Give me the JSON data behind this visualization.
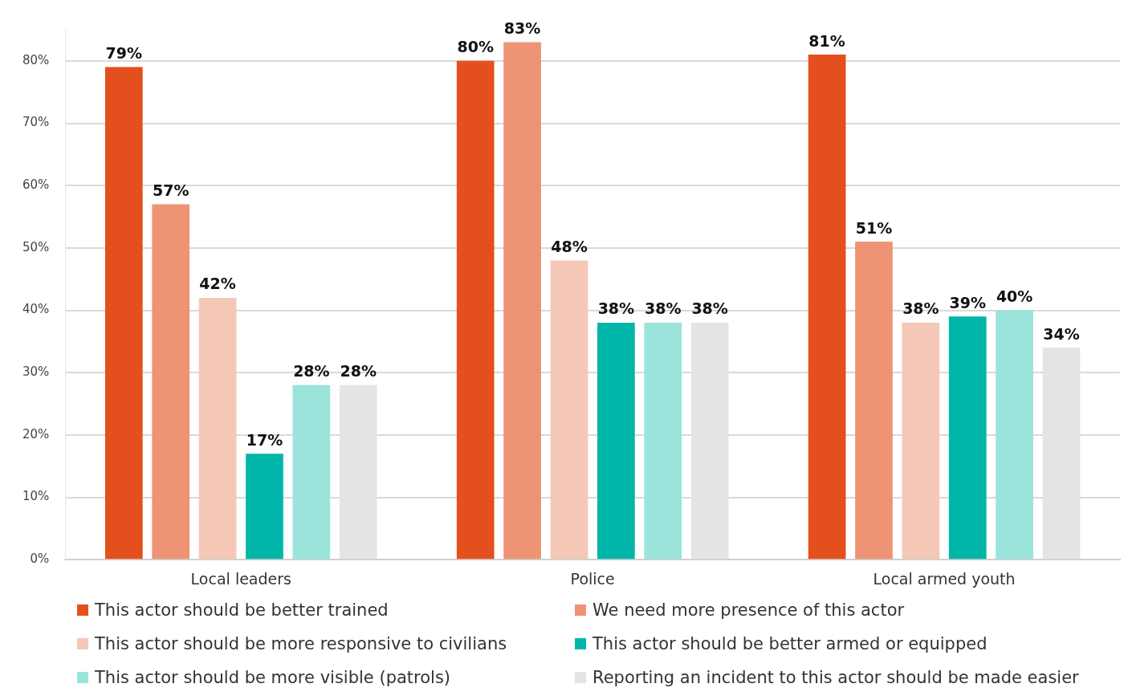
{
  "chart_data": {
    "type": "bar",
    "categories": [
      "Local leaders",
      "Police",
      "Local armed youth"
    ],
    "series": [
      {
        "name": "This actor should be better trained",
        "color": "#e3501e",
        "values": [
          79,
          80,
          81
        ],
        "value_labels": [
          "79%",
          "80%",
          "81%"
        ]
      },
      {
        "name": "We need more presence of this actor",
        "color": "#ee9474",
        "values": [
          57,
          83,
          51
        ],
        "value_labels": [
          "57%",
          "83%",
          "51%"
        ]
      },
      {
        "name": "This actor should be more responsive to civilians",
        "color": "#f5c7b7",
        "values": [
          42,
          48,
          38
        ],
        "value_labels": [
          "42%",
          "48%",
          "38%"
        ]
      },
      {
        "name": "This actor should be better armed or equipped",
        "color": "#00b6a9",
        "values": [
          17,
          38,
          39
        ],
        "value_labels": [
          "17%",
          "38%",
          "39%"
        ]
      },
      {
        "name": "This actor should be more visible (patrols)",
        "color": "#9ae4dc",
        "values": [
          28,
          38,
          40
        ],
        "value_labels": [
          "28%",
          "38%",
          "40%"
        ]
      },
      {
        "name": "Reporting an incident to this actor should be made easier",
        "color": "#e4e4e4",
        "values": [
          28,
          38,
          34
        ],
        "value_labels": [
          "28%",
          "38%",
          "34%"
        ]
      }
    ],
    "ylim": [
      0,
      85
    ],
    "yticks": [
      {
        "value": 0,
        "label": "0%"
      },
      {
        "value": 10,
        "label": "10%"
      },
      {
        "value": 20,
        "label": "20%"
      },
      {
        "value": 30,
        "label": "30%"
      },
      {
        "value": 40,
        "label": "40%"
      },
      {
        "value": 50,
        "label": "50%"
      },
      {
        "value": 60,
        "label": "60%"
      },
      {
        "value": 70,
        "label": "70%"
      },
      {
        "value": 80,
        "label": "80%"
      }
    ],
    "grid": "y",
    "legend": "bottom"
  }
}
